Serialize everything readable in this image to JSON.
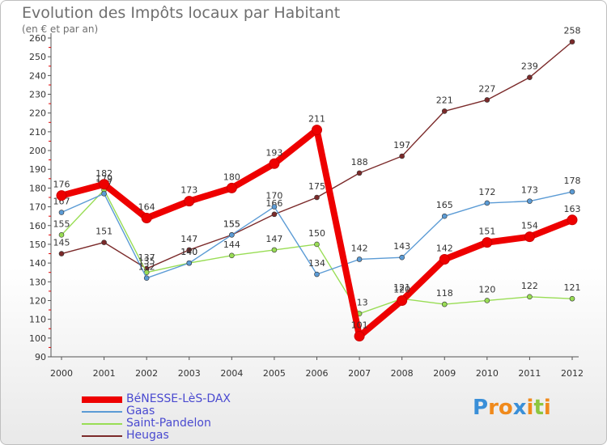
{
  "title": "Evolution des Impôts locaux par Habitant",
  "subtitle": "(en € et par an)",
  "logo": {
    "letters": [
      "P",
      "r",
      "o",
      "x",
      "i",
      "t",
      "i"
    ],
    "colors": [
      "#3a8fd8",
      "#f08a1c",
      "#f08a1c",
      "#3a8fd8",
      "#f08a1c",
      "#8dc63f",
      "#f08a1c"
    ]
  },
  "chart_data": {
    "type": "line",
    "title": "Evolution des Impôts locaux par Habitant",
    "ylabel": "(en € et par an)",
    "x": [
      "2000",
      "2001",
      "2002",
      "2003",
      "2004",
      "2005",
      "2006",
      "2007",
      "2008",
      "2009",
      "2010",
      "2011",
      "2012"
    ],
    "ylim": [
      90,
      260
    ],
    "yticks": [
      90,
      100,
      110,
      120,
      130,
      140,
      150,
      160,
      170,
      180,
      190,
      200,
      210,
      220,
      230,
      240,
      250,
      260
    ],
    "grid": false,
    "legend_position": "bottom-left",
    "series": [
      {
        "name": "Heugas",
        "color": "#7b2a2a",
        "values": [
          145,
          151,
          137,
          147,
          155,
          166,
          175,
          188,
          197,
          221,
          227,
          239,
          258
        ]
      },
      {
        "name": "Saint-Pandelon",
        "color": "#99dd55",
        "values": [
          155,
          179,
          135,
          140,
          144,
          147,
          150,
          113,
          121,
          118,
          120,
          122,
          121
        ]
      },
      {
        "name": "Gaas",
        "color": "#5b9bd5",
        "values": [
          167,
          177,
          132,
          140,
          155,
          170,
          134,
          142,
          143,
          165,
          172,
          173,
          178
        ]
      },
      {
        "name": "BéNESSE-LèS-DAX",
        "color": "#ee0000",
        "values": [
          176,
          182,
          164,
          173,
          180,
          193,
          211,
          101,
          120,
          142,
          151,
          154,
          163
        ]
      }
    ]
  }
}
